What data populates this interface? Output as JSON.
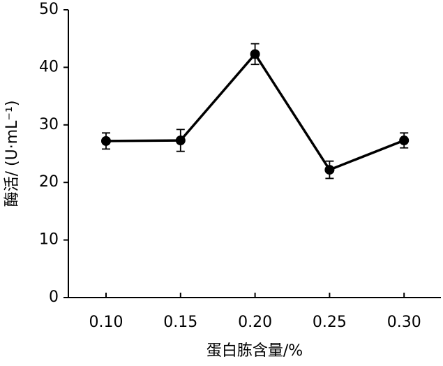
{
  "chart_data": {
    "type": "line",
    "xlabel": "蛋白胨含量/%",
    "ylabel": "酶活/ (U·mL⁻¹)",
    "categories": [
      "0.10",
      "0.15",
      "0.20",
      "0.25",
      "0.30"
    ],
    "values": [
      27.2,
      27.3,
      42.3,
      22.2,
      27.3
    ],
    "errors": [
      1.4,
      1.9,
      1.8,
      1.5,
      1.3
    ],
    "color": "#000000",
    "ylim": [
      0,
      50
    ],
    "yticks": [
      0,
      10,
      20,
      30,
      40,
      50
    ]
  }
}
